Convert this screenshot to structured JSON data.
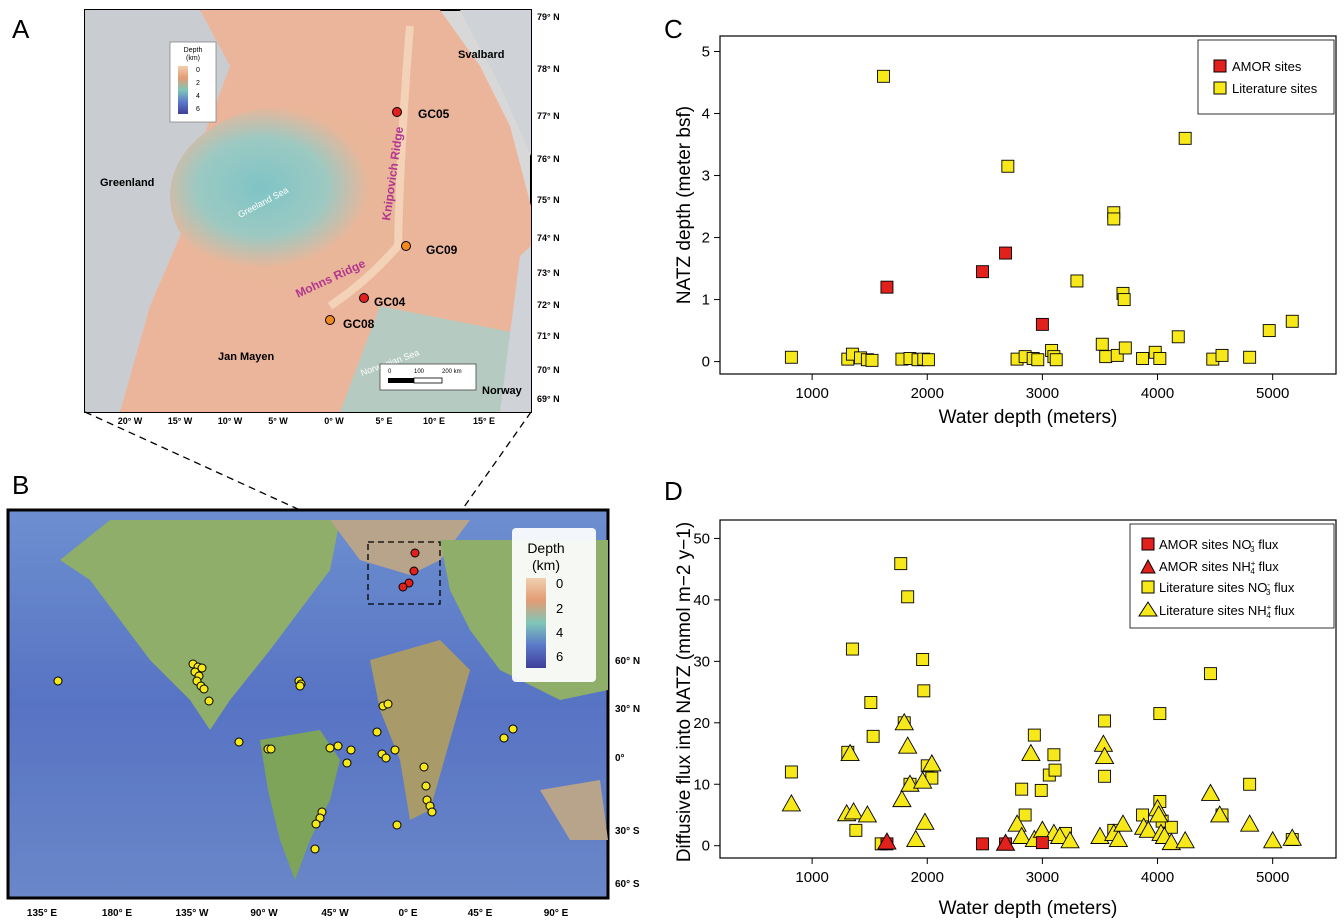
{
  "panels": {
    "a": "A",
    "b": "B",
    "c": "C",
    "d": "D"
  },
  "map_a": {
    "legend_title_1": "Depth",
    "legend_title_2": "(km)",
    "legend_ticks": [
      "0",
      "2",
      "4",
      "6"
    ],
    "lat_labels": [
      "79° N",
      "78° N",
      "77° N",
      "76° N",
      "75° N",
      "74° N",
      "73° N",
      "72° N",
      "71° N",
      "70° N",
      "69° N"
    ],
    "lon_labels": [
      "20° W",
      "15° W",
      "10° W",
      "5° W",
      "0° W",
      "5° E",
      "10° E",
      "15° E"
    ],
    "places": {
      "svalbard": "Svalbard",
      "greenland": "Greenland",
      "greenland_sea": "Greeland Sea",
      "knipovich": "Knipovich Ridge",
      "mohns": "Mohns Ridge",
      "jan_mayen": "Jan Mayen",
      "norwegian_sea": "Norwegian Sea",
      "norway": "Norway"
    },
    "sites": [
      {
        "label": "GC05",
        "color": "#e2211c"
      },
      {
        "label": "GC09",
        "color": "#f08a1e"
      },
      {
        "label": "GC04",
        "color": "#e2211c"
      },
      {
        "label": "GC08",
        "color": "#f08a1e"
      }
    ],
    "scale_labels": [
      "0",
      "100",
      "200 km"
    ]
  },
  "map_b": {
    "legend_title_1": "Depth",
    "legend_title_2": "(km)",
    "legend_ticks": [
      "0",
      "2",
      "4",
      "6"
    ],
    "lat_labels": [
      "60° N",
      "30° N",
      "0°",
      "30° S",
      "60° S"
    ],
    "lon_labels": [
      "135° E",
      "180° E",
      "135° W",
      "90° W",
      "45° W",
      "0° E",
      "45° E",
      "90° E"
    ]
  },
  "chart_data": [
    {
      "type": "scatter",
      "panel": "C",
      "xlabel": "Water depth (meters)",
      "ylabel": "NATZ depth (meter bsf)",
      "xlim": [
        200,
        5550
      ],
      "ylim": [
        -0.2,
        5.25
      ],
      "xticks": [
        1000,
        2000,
        3000,
        4000,
        5000
      ],
      "yticks": [
        0,
        1,
        2,
        3,
        4,
        5
      ],
      "legend_position": "top-right",
      "series": [
        {
          "name": "AMOR sites",
          "marker": "square",
          "color": "#e2211c",
          "points": [
            [
              1650,
              1.2
            ],
            [
              2480,
              1.45
            ],
            [
              2680,
              1.75
            ],
            [
              3000,
              0.6
            ]
          ]
        },
        {
          "name": "Literature sites",
          "marker": "square",
          "color": "#f7e81a",
          "points": [
            [
              820,
              0.07
            ],
            [
              1310,
              0.04
            ],
            [
              1350,
              0.12
            ],
            [
              1420,
              0.06
            ],
            [
              1480,
              0.03
            ],
            [
              1520,
              0.02
            ],
            [
              1620,
              4.6
            ],
            [
              1780,
              0.04
            ],
            [
              1850,
              0.05
            ],
            [
              1920,
              0.03
            ],
            [
              1970,
              0.04
            ],
            [
              2010,
              0.03
            ],
            [
              2700,
              3.15
            ],
            [
              2780,
              0.04
            ],
            [
              2850,
              0.08
            ],
            [
              2920,
              0.05
            ],
            [
              2960,
              0.03
            ],
            [
              3080,
              0.18
            ],
            [
              3100,
              0.08
            ],
            [
              3120,
              0.03
            ],
            [
              3300,
              1.3
            ],
            [
              3520,
              0.28
            ],
            [
              3550,
              0.08
            ],
            [
              3620,
              2.4
            ],
            [
              3620,
              2.3
            ],
            [
              3650,
              0.1
            ],
            [
              3700,
              1.1
            ],
            [
              3710,
              1.0
            ],
            [
              3720,
              0.22
            ],
            [
              3870,
              0.05
            ],
            [
              3980,
              0.15
            ],
            [
              4020,
              0.05
            ],
            [
              4180,
              0.4
            ],
            [
              4240,
              3.6
            ],
            [
              4480,
              0.04
            ],
            [
              4560,
              0.1
            ],
            [
              4800,
              0.07
            ],
            [
              4970,
              0.5
            ],
            [
              5170,
              0.65
            ]
          ]
        }
      ]
    },
    {
      "type": "scatter",
      "panel": "D",
      "xlabel": "Water depth (meters)",
      "ylabel": "Diffusive flux into NATZ (mmol m−2 y−1)",
      "xlim": [
        200,
        5550
      ],
      "ylim": [
        -2,
        53
      ],
      "xticks": [
        1000,
        2000,
        3000,
        4000,
        5000
      ],
      "yticks": [
        0,
        10,
        20,
        30,
        40,
        50
      ],
      "legend_position": "top-right",
      "series": [
        {
          "name": "AMOR sites NO3- flux",
          "marker": "square",
          "color": "#e2211c",
          "points": [
            [
              1650,
              0.3
            ],
            [
              2480,
              0.3
            ],
            [
              2680,
              0.3
            ],
            [
              3000,
              0.5
            ]
          ]
        },
        {
          "name": "AMOR sites NH4+ flux",
          "marker": "triangle",
          "color": "#e2211c",
          "points": [
            [
              1650,
              0.6
            ],
            [
              2680,
              0.4
            ]
          ]
        },
        {
          "name": "Literature sites NO3- flux",
          "marker": "square",
          "color": "#f7e81a",
          "points": [
            [
              820,
              12
            ],
            [
              1310,
              15.2
            ],
            [
              1350,
              32
            ],
            [
              1380,
              2.5
            ],
            [
              1510,
              23.3
            ],
            [
              1530,
              17.8
            ],
            [
              1600,
              0.3
            ],
            [
              1770,
              45.9
            ],
            [
              1800,
              20
            ],
            [
              1830,
              40.5
            ],
            [
              1850,
              10
            ],
            [
              1960,
              30.3
            ],
            [
              1970,
              25.2
            ],
            [
              2000,
              13
            ],
            [
              2040,
              11
            ],
            [
              2820,
              9.2
            ],
            [
              2850,
              5
            ],
            [
              2930,
              18
            ],
            [
              2990,
              9
            ],
            [
              3060,
              11.5
            ],
            [
              3100,
              14.8
            ],
            [
              3110,
              12.3
            ],
            [
              3200,
              2
            ],
            [
              3540,
              20.3
            ],
            [
              3540,
              11.3
            ],
            [
              3620,
              2.5
            ],
            [
              3870,
              5
            ],
            [
              4020,
              21.5
            ],
            [
              4020,
              7.2
            ],
            [
              4040,
              4
            ],
            [
              4120,
              3
            ],
            [
              4460,
              28
            ],
            [
              4800,
              10
            ],
            [
              4560,
              5
            ],
            [
              5170,
              1
            ]
          ]
        },
        {
          "name": "Literature sites NH4+ flux",
          "marker": "triangle",
          "color": "#f7e81a",
          "points": [
            [
              820,
              6.8
            ],
            [
              1300,
              5.2
            ],
            [
              1330,
              15
            ],
            [
              1360,
              5.5
            ],
            [
              1480,
              5
            ],
            [
              1800,
              20
            ],
            [
              1780,
              7.5
            ],
            [
              1830,
              16.2
            ],
            [
              1850,
              10
            ],
            [
              1900,
              1
            ],
            [
              1960,
              10.5
            ],
            [
              1980,
              3.8
            ],
            [
              2040,
              13.3
            ],
            [
              2780,
              3.5
            ],
            [
              2820,
              1.5
            ],
            [
              2900,
              15
            ],
            [
              2930,
              1
            ],
            [
              3000,
              2.5
            ],
            [
              3100,
              2
            ],
            [
              3150,
              1.5
            ],
            [
              3240,
              0.8
            ],
            [
              3500,
              1.5
            ],
            [
              3530,
              16.5
            ],
            [
              3540,
              14.5
            ],
            [
              3620,
              2
            ],
            [
              3660,
              1
            ],
            [
              3700,
              3.5
            ],
            [
              3880,
              3
            ],
            [
              3920,
              2.5
            ],
            [
              4000,
              6
            ],
            [
              4010,
              5
            ],
            [
              4030,
              2
            ],
            [
              4060,
              1.5
            ],
            [
              4120,
              0.5
            ],
            [
              4240,
              0.8
            ],
            [
              4460,
              8.5
            ],
            [
              4540,
              5
            ],
            [
              4800,
              3.5
            ],
            [
              5000,
              0.8
            ],
            [
              5170,
              1.2
            ]
          ]
        }
      ]
    }
  ]
}
